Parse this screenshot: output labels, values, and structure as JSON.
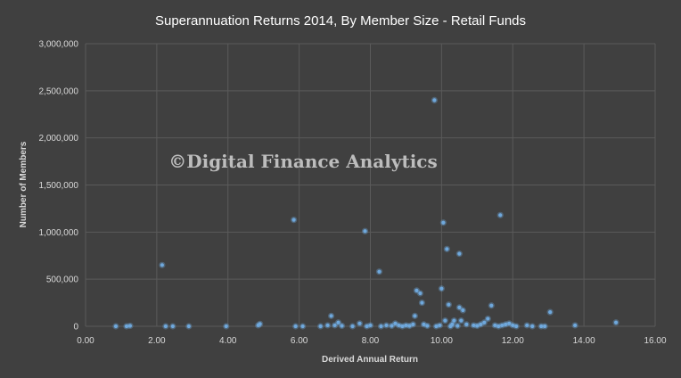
{
  "chart_data": {
    "type": "scatter",
    "title": "Superannuation Returns 2014, By Member Size - Retail Funds",
    "xlabel": "Derived Annual Return",
    "ylabel": "Number of Members",
    "xlim": [
      0,
      16
    ],
    "ylim": [
      0,
      3000000
    ],
    "x_ticks": [
      0,
      2,
      4,
      6,
      8,
      10,
      12,
      14,
      16
    ],
    "x_tick_labels": [
      "0.00",
      "2.00",
      "4.00",
      "6.00",
      "8.00",
      "10.00",
      "12.00",
      "14.00",
      "16.00"
    ],
    "y_ticks": [
      0,
      500000,
      1000000,
      1500000,
      2000000,
      2500000,
      3000000
    ],
    "y_tick_labels": [
      "0",
      "500,000",
      "1,000,000",
      "1,500,000",
      "2,000,000",
      "2,500,000",
      "3,000,000"
    ],
    "grid": true,
    "legend": "none",
    "marker_color": "#6fa8dc",
    "watermark": "©Digital Finance Analytics",
    "points": [
      {
        "x": 0.85,
        "y": 0
      },
      {
        "x": 1.15,
        "y": 0
      },
      {
        "x": 1.25,
        "y": 5000
      },
      {
        "x": 2.15,
        "y": 650000
      },
      {
        "x": 2.25,
        "y": 0
      },
      {
        "x": 2.45,
        "y": 0
      },
      {
        "x": 2.9,
        "y": 0
      },
      {
        "x": 3.95,
        "y": 0
      },
      {
        "x": 4.85,
        "y": 10000
      },
      {
        "x": 4.9,
        "y": 25000
      },
      {
        "x": 5.85,
        "y": 1130000
      },
      {
        "x": 5.9,
        "y": 0
      },
      {
        "x": 6.1,
        "y": 0
      },
      {
        "x": 6.6,
        "y": 0
      },
      {
        "x": 6.8,
        "y": 10000
      },
      {
        "x": 6.9,
        "y": 110000
      },
      {
        "x": 7.0,
        "y": 10000
      },
      {
        "x": 7.1,
        "y": 40000
      },
      {
        "x": 7.2,
        "y": 5000
      },
      {
        "x": 7.5,
        "y": 0
      },
      {
        "x": 7.7,
        "y": 30000
      },
      {
        "x": 7.85,
        "y": 1010000
      },
      {
        "x": 7.9,
        "y": 0
      },
      {
        "x": 8.0,
        "y": 10000
      },
      {
        "x": 8.25,
        "y": 580000
      },
      {
        "x": 8.3,
        "y": 0
      },
      {
        "x": 8.45,
        "y": 10000
      },
      {
        "x": 8.6,
        "y": 5000
      },
      {
        "x": 8.7,
        "y": 30000
      },
      {
        "x": 8.8,
        "y": 10000
      },
      {
        "x": 8.9,
        "y": 0
      },
      {
        "x": 9.0,
        "y": 10000
      },
      {
        "x": 9.1,
        "y": 5000
      },
      {
        "x": 9.2,
        "y": 20000
      },
      {
        "x": 9.25,
        "y": 110000
      },
      {
        "x": 9.3,
        "y": 380000
      },
      {
        "x": 9.4,
        "y": 350000
      },
      {
        "x": 9.45,
        "y": 250000
      },
      {
        "x": 9.5,
        "y": 20000
      },
      {
        "x": 9.6,
        "y": 5000
      },
      {
        "x": 9.8,
        "y": 2400000
      },
      {
        "x": 9.85,
        "y": 0
      },
      {
        "x": 9.95,
        "y": 10000
      },
      {
        "x": 10.0,
        "y": 400000
      },
      {
        "x": 10.05,
        "y": 1100000
      },
      {
        "x": 10.1,
        "y": 60000
      },
      {
        "x": 10.15,
        "y": 820000
      },
      {
        "x": 10.2,
        "y": 230000
      },
      {
        "x": 10.25,
        "y": 0
      },
      {
        "x": 10.3,
        "y": 20000
      },
      {
        "x": 10.35,
        "y": 60000
      },
      {
        "x": 10.45,
        "y": 5000
      },
      {
        "x": 10.5,
        "y": 770000
      },
      {
        "x": 10.5,
        "y": 200000
      },
      {
        "x": 10.55,
        "y": 60000
      },
      {
        "x": 10.6,
        "y": 170000
      },
      {
        "x": 10.7,
        "y": 20000
      },
      {
        "x": 10.9,
        "y": 10000
      },
      {
        "x": 11.0,
        "y": 5000
      },
      {
        "x": 11.1,
        "y": 20000
      },
      {
        "x": 11.2,
        "y": 40000
      },
      {
        "x": 11.3,
        "y": 80000
      },
      {
        "x": 11.4,
        "y": 220000
      },
      {
        "x": 11.5,
        "y": 10000
      },
      {
        "x": 11.6,
        "y": 0
      },
      {
        "x": 11.65,
        "y": 1180000
      },
      {
        "x": 11.7,
        "y": 10000
      },
      {
        "x": 11.8,
        "y": 20000
      },
      {
        "x": 11.9,
        "y": 30000
      },
      {
        "x": 12.0,
        "y": 10000
      },
      {
        "x": 12.1,
        "y": 0
      },
      {
        "x": 12.4,
        "y": 10000
      },
      {
        "x": 12.55,
        "y": 0
      },
      {
        "x": 12.8,
        "y": 0
      },
      {
        "x": 12.9,
        "y": 0
      },
      {
        "x": 13.05,
        "y": 150000
      },
      {
        "x": 13.75,
        "y": 10000
      },
      {
        "x": 14.9,
        "y": 40000
      }
    ]
  }
}
